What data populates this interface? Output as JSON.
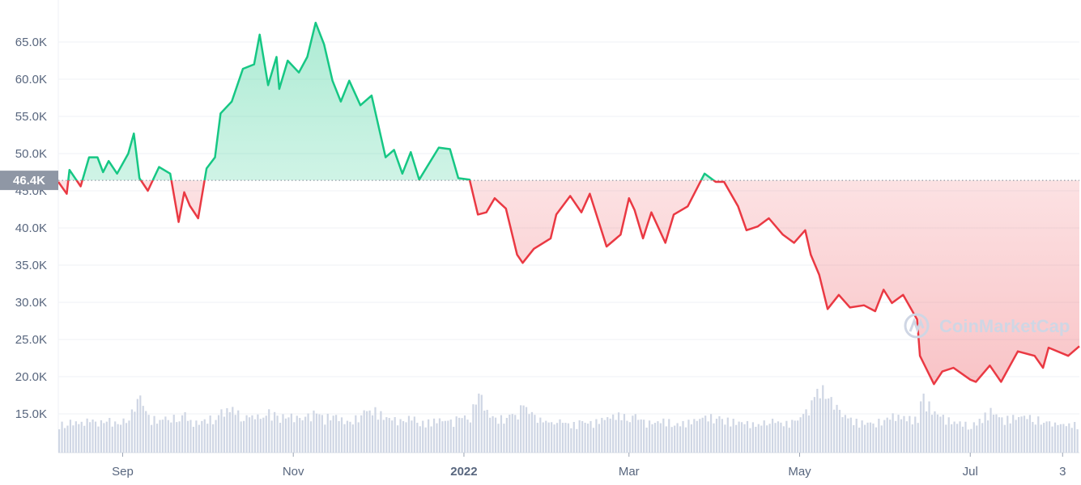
{
  "chart_data": {
    "type": "line",
    "title": "",
    "xlabel": "",
    "ylabel": "",
    "ylim": [
      11000,
      69000
    ],
    "xlim": [
      "2021-08-09",
      "2022-08-09"
    ],
    "grid": true,
    "y_ticks": [
      "15.0K",
      "20.0K",
      "25.0K",
      "30.0K",
      "35.0K",
      "40.0K",
      "45.0K",
      "50.0K",
      "55.0K",
      "60.0K",
      "65.0K"
    ],
    "y_tick_values": [
      15000,
      20000,
      25000,
      30000,
      35000,
      40000,
      45000,
      50000,
      55000,
      60000,
      65000
    ],
    "x_ticks": [
      {
        "label": "Sep",
        "date": "2021-09-01",
        "bold": false
      },
      {
        "label": "Nov",
        "date": "2021-11-01",
        "bold": false
      },
      {
        "label": "2022",
        "date": "2022-01-01",
        "bold": true
      },
      {
        "label": "Mar",
        "date": "2022-03-01",
        "bold": false
      },
      {
        "label": "May",
        "date": "2022-05-01",
        "bold": false
      },
      {
        "label": "Jul",
        "date": "2022-07-01",
        "bold": false
      },
      {
        "label": "3",
        "date": "2022-08-03",
        "bold": false
      }
    ],
    "baseline": {
      "value": 46400,
      "label": "46.4K"
    },
    "colors": {
      "above": "#16c784",
      "below": "#ea3943",
      "volume": "#cfd6e4",
      "grid": "#eff2f5",
      "baseline_label_bg": "#8f97a5"
    },
    "watermark": "CoinMarketCap",
    "series": [
      {
        "dates": [
          "2021-08-09",
          "2021-08-12",
          "2021-08-13",
          "2021-08-17",
          "2021-08-20",
          "2021-08-23",
          "2021-08-25",
          "2021-08-27",
          "2021-08-30",
          "2021-09-03",
          "2021-09-05",
          "2021-09-07",
          "2021-09-10",
          "2021-09-14",
          "2021-09-18",
          "2021-09-21",
          "2021-09-23",
          "2021-09-25",
          "2021-09-28",
          "2021-10-01",
          "2021-10-04",
          "2021-10-06",
          "2021-10-10",
          "2021-10-14",
          "2021-10-18",
          "2021-10-20",
          "2021-10-23",
          "2021-10-26",
          "2021-10-27",
          "2021-10-30",
          "2021-11-03",
          "2021-11-06",
          "2021-11-09",
          "2021-11-12",
          "2021-11-15",
          "2021-11-18",
          "2021-11-21",
          "2021-11-25",
          "2021-11-29",
          "2021-12-04",
          "2021-12-07",
          "2021-12-10",
          "2021-12-13",
          "2021-12-16",
          "2021-12-23",
          "2021-12-27",
          "2021-12-30",
          "2022-01-03",
          "2022-01-06",
          "2022-01-09",
          "2022-01-12",
          "2022-01-16",
          "2022-01-20",
          "2022-01-22",
          "2022-01-26",
          "2022-02-01",
          "2022-02-03",
          "2022-02-08",
          "2022-02-12",
          "2022-02-15",
          "2022-02-21",
          "2022-02-26",
          "2022-03-01",
          "2022-03-03",
          "2022-03-06",
          "2022-03-09",
          "2022-03-14",
          "2022-03-17",
          "2022-03-22",
          "2022-03-28",
          "2022-04-01",
          "2022-04-04",
          "2022-04-09",
          "2022-04-12",
          "2022-04-16",
          "2022-04-20",
          "2022-04-25",
          "2022-04-29",
          "2022-05-03",
          "2022-05-05",
          "2022-05-08",
          "2022-05-11",
          "2022-05-15",
          "2022-05-19",
          "2022-05-24",
          "2022-05-28",
          "2022-05-31",
          "2022-06-03",
          "2022-06-07",
          "2022-06-12",
          "2022-06-13",
          "2022-06-18",
          "2022-06-21",
          "2022-06-25",
          "2022-07-01",
          "2022-07-03",
          "2022-07-08",
          "2022-07-12",
          "2022-07-18",
          "2022-07-24",
          "2022-07-27",
          "2022-07-29",
          "2022-08-05",
          "2022-08-09"
        ],
        "price": [
          46200,
          44600,
          47800,
          45600,
          49500,
          49500,
          47500,
          49000,
          47300,
          50000,
          52700,
          46700,
          45000,
          48200,
          47300,
          40800,
          44800,
          43000,
          41300,
          48000,
          49500,
          55400,
          57000,
          61400,
          62000,
          66000,
          59200,
          63000,
          58700,
          62500,
          60900,
          63000,
          67600,
          64700,
          59800,
          57000,
          59800,
          56500,
          57800,
          49500,
          50500,
          47300,
          50200,
          46500,
          50800,
          50600,
          46700,
          46500,
          41800,
          42100,
          44000,
          42600,
          36400,
          35300,
          37200,
          38600,
          41800,
          44300,
          42100,
          44600,
          37500,
          39100,
          44000,
          42400,
          38600,
          42100,
          38000,
          41800,
          42900,
          47300,
          46200,
          46200,
          42900,
          39700,
          40200,
          41300,
          39100,
          38000,
          39700,
          36400,
          33700,
          29100,
          31000,
          29300,
          29600,
          28800,
          31700,
          29900,
          31000,
          27700,
          22800,
          19000,
          20700,
          21200,
          19600,
          19300,
          21500,
          19300,
          23400,
          22800,
          21200,
          23900,
          22800,
          24100
        ],
        "volume_relative": [
          40,
          38,
          42,
          40,
          45,
          42,
          40,
          44,
          38,
          50,
          62,
          75,
          48,
          45,
          50,
          45,
          52,
          42,
          40,
          48,
          45,
          55,
          60,
          48,
          52,
          45,
          55,
          50,
          48,
          52,
          45,
          50,
          55,
          48,
          52,
          45,
          40,
          55,
          60,
          48,
          45,
          42,
          50,
          40,
          45,
          42,
          48,
          50,
          85,
          55,
          45,
          50,
          55,
          65,
          48,
          40,
          45,
          38,
          42,
          40,
          48,
          52,
          45,
          50,
          42,
          40,
          45,
          38,
          42,
          48,
          50,
          45,
          42,
          40,
          38,
          45,
          40,
          42,
          55,
          72,
          90,
          78,
          55,
          45,
          40,
          42,
          45,
          50,
          48,
          45,
          80,
          55,
          48,
          42,
          38,
          40,
          58,
          45,
          50,
          48,
          42,
          40,
          38,
          40
        ]
      }
    ]
  }
}
